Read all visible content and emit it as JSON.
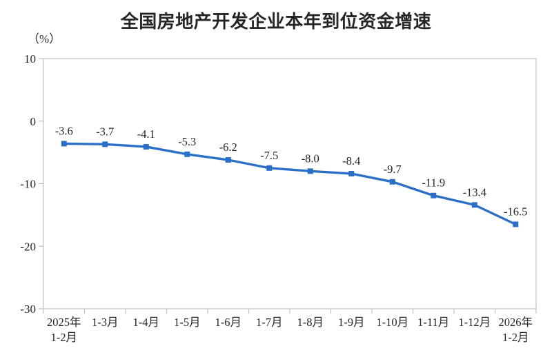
{
  "title": "全国房地产开发企业本年到位资金增速",
  "y_axis_unit_label": "（%）",
  "colors": {
    "line": "#2B6FC7",
    "text": "#262626",
    "axis_border": "#CFCFCF",
    "tick": "#BFBFBF"
  },
  "chart_data": {
    "type": "line",
    "title": "全国房地产开发企业本年到位资金增速",
    "xlabel": "",
    "ylabel": "（%）",
    "categories": [
      "2025年\n1-2月",
      "1-3月",
      "1-4月",
      "1-5月",
      "1-6月",
      "1-7月",
      "1-8月",
      "1-9月",
      "1-10月",
      "1-11月",
      "1-12月",
      "2026年\n1-2月"
    ],
    "values": [
      -3.6,
      -3.7,
      -4.1,
      -5.3,
      -6.2,
      -7.5,
      -8.0,
      -8.4,
      -9.7,
      -11.9,
      -13.4,
      -16.5
    ],
    "labels": [
      "-3.6",
      "-3.7",
      "-4.1",
      "-5.3",
      "-6.2",
      "-7.5",
      "-8.0",
      "-8.4",
      "-9.7",
      "-11.9",
      "-13.4",
      "-16.5"
    ],
    "ylim": [
      -30,
      10
    ],
    "y_ticks": [
      10,
      0,
      -10,
      -20,
      -30
    ],
    "grid": false,
    "legend": "none",
    "marker": "square",
    "line_color": "#2B6FC7"
  }
}
